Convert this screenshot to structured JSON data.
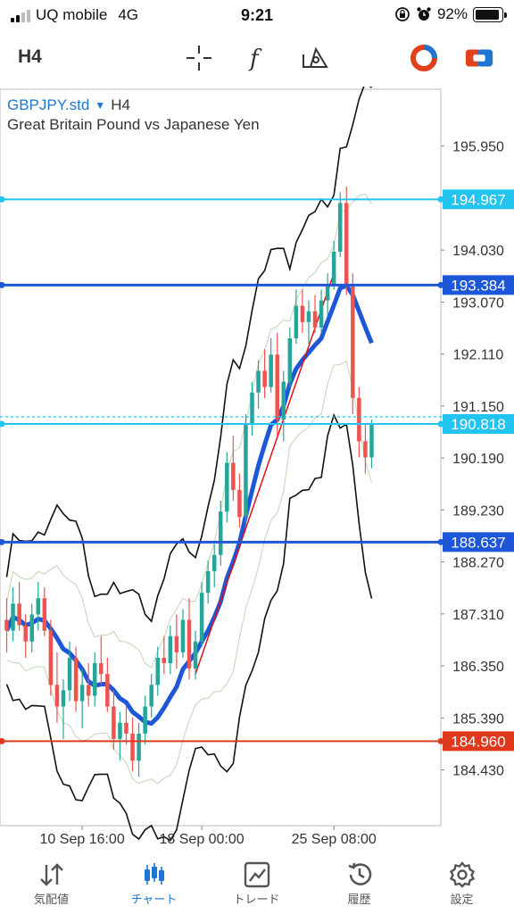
{
  "status": {
    "carrier": "UQ mobile",
    "network": "4G",
    "time": "9:21",
    "battery": "92%",
    "battery_level": 0.92
  },
  "toolbar": {
    "timeframe": "H4",
    "icons": [
      "crosshair-icon",
      "function-icon",
      "objects-icon",
      "trade-circle-icon",
      "one-click-trading-icon"
    ]
  },
  "chart": {
    "symbol": "GBPJPY.std",
    "timeframe": "H4",
    "description": "Great Britain Pound vs Japanese Yen"
  },
  "tabs": [
    {
      "label": "気配値",
      "icon": "quotes-icon",
      "active": false
    },
    {
      "label": "チャート",
      "icon": "chart-icon",
      "active": true
    },
    {
      "label": "トレード",
      "icon": "trade-icon",
      "active": false
    },
    {
      "label": "履歴",
      "icon": "history-icon",
      "active": false
    },
    {
      "label": "設定",
      "icon": "settings-icon",
      "active": false
    }
  ],
  "chart_data": {
    "type": "candlestick",
    "y_ticks": [
      "195.950",
      "194.030",
      "193.070",
      "192.110",
      "191.150",
      "190.190",
      "189.230",
      "188.270",
      "187.310",
      "186.350",
      "185.390",
      "184.430"
    ],
    "y_tick_values": [
      195.95,
      194.03,
      193.07,
      192.11,
      191.15,
      190.19,
      189.23,
      188.27,
      187.31,
      186.35,
      185.39,
      184.43
    ],
    "ylim": [
      183.4,
      197.0
    ],
    "x_ticks": [
      "10 Sep 16:00",
      "18 Sep 00:00",
      "25 Sep 08:00"
    ],
    "horizontal_lines": [
      {
        "label": "194.967",
        "value": 194.967,
        "color": "#23c4f0",
        "style": "solid",
        "tag_bg": "#23c4f0",
        "tag_fg": "#ffffff"
      },
      {
        "label": "193.384",
        "value": 193.384,
        "color": "#1e56d8",
        "style": "solid",
        "tag_bg": "#1e56d8",
        "tag_fg": "#ffffff"
      },
      {
        "label": "190.818",
        "value": 190.818,
        "color": "#23c4f0",
        "style": "solid",
        "tag_bg": "#23c4f0",
        "tag_fg": "#ffffff"
      },
      {
        "label": "188.637",
        "value": 188.637,
        "color": "#1e56d8",
        "style": "solid",
        "tag_bg": "#1e56d8",
        "tag_fg": "#ffffff"
      },
      {
        "label": "184.960",
        "value": 184.96,
        "color": "#e03a1e",
        "style": "solid",
        "tag_bg": "#e03a1e",
        "tag_fg": "#ffffff"
      }
    ],
    "price_line": {
      "value": 190.95,
      "color": "#23c4f0",
      "style": "dotted"
    },
    "colors": {
      "bull": "#26a69a",
      "bear": "#ef5350",
      "ma": "#1e56d8",
      "band": "#111111",
      "trend": "#e01010",
      "inner_band": "#c9dcc0"
    },
    "candles": [
      [
        187.2,
        187.6,
        186.6,
        187.0
      ],
      [
        187.0,
        187.8,
        186.8,
        187.5
      ],
      [
        187.5,
        187.9,
        187.0,
        187.1
      ],
      [
        187.1,
        187.3,
        186.5,
        186.8
      ],
      [
        186.8,
        187.5,
        186.6,
        187.3
      ],
      [
        187.3,
        187.9,
        187.0,
        187.6
      ],
      [
        187.6,
        187.8,
        186.9,
        187.0
      ],
      [
        187.0,
        187.2,
        185.8,
        186.0
      ],
      [
        186.0,
        186.6,
        185.3,
        185.6
      ],
      [
        185.6,
        186.1,
        185.0,
        185.9
      ],
      [
        185.9,
        186.8,
        185.7,
        186.5
      ],
      [
        186.5,
        186.7,
        185.5,
        185.7
      ],
      [
        185.7,
        186.3,
        185.2,
        186.0
      ],
      [
        186.0,
        186.4,
        185.6,
        185.8
      ],
      [
        185.8,
        186.6,
        185.6,
        186.4
      ],
      [
        186.4,
        186.9,
        186.0,
        186.2
      ],
      [
        186.2,
        186.5,
        185.5,
        185.6
      ],
      [
        185.6,
        185.9,
        184.8,
        185.0
      ],
      [
        185.0,
        185.5,
        184.6,
        185.3
      ],
      [
        185.3,
        185.6,
        184.9,
        185.1
      ],
      [
        185.1,
        185.4,
        184.4,
        184.6
      ],
      [
        184.6,
        185.3,
        184.3,
        185.1
      ],
      [
        185.1,
        185.8,
        184.9,
        185.6
      ],
      [
        185.6,
        186.2,
        185.4,
        186.0
      ],
      [
        186.0,
        186.7,
        185.8,
        186.5
      ],
      [
        186.5,
        186.9,
        186.2,
        186.4
      ],
      [
        186.4,
        187.1,
        186.2,
        186.9
      ],
      [
        186.9,
        187.3,
        186.3,
        186.6
      ],
      [
        186.6,
        187.4,
        186.5,
        187.2
      ],
      [
        187.2,
        187.6,
        186.1,
        186.3
      ],
      [
        186.3,
        187.0,
        186.1,
        186.8
      ],
      [
        186.8,
        187.9,
        186.7,
        187.7
      ],
      [
        187.7,
        188.3,
        187.5,
        188.1
      ],
      [
        188.1,
        188.6,
        187.8,
        188.4
      ],
      [
        188.4,
        189.4,
        188.2,
        189.2
      ],
      [
        189.2,
        190.3,
        189.0,
        190.1
      ],
      [
        190.1,
        190.6,
        189.4,
        189.6
      ],
      [
        189.6,
        189.9,
        188.9,
        189.1
      ],
      [
        189.1,
        191.0,
        189.0,
        190.8
      ],
      [
        190.8,
        191.6,
        190.6,
        191.4
      ],
      [
        191.4,
        192.0,
        191.1,
        191.8
      ],
      [
        191.8,
        192.2,
        191.3,
        191.5
      ],
      [
        191.5,
        192.4,
        191.4,
        192.1
      ],
      [
        192.1,
        192.5,
        190.6,
        190.9
      ],
      [
        190.9,
        191.8,
        190.5,
        191.6
      ],
      [
        191.6,
        192.6,
        191.5,
        192.4
      ],
      [
        192.4,
        193.3,
        192.3,
        193.0
      ],
      [
        193.0,
        193.3,
        192.5,
        192.7
      ],
      [
        192.7,
        193.1,
        192.3,
        192.9
      ],
      [
        192.9,
        193.2,
        192.5,
        192.6
      ],
      [
        192.6,
        193.3,
        192.5,
        193.1
      ],
      [
        193.1,
        193.6,
        192.8,
        193.4
      ],
      [
        193.4,
        194.2,
        193.3,
        194.0
      ],
      [
        194.0,
        195.1,
        193.9,
        194.9
      ],
      [
        194.9,
        195.2,
        193.2,
        193.4
      ],
      [
        193.4,
        193.6,
        191.0,
        191.3
      ],
      [
        191.3,
        191.5,
        190.2,
        190.5
      ],
      [
        190.5,
        190.8,
        189.9,
        190.2
      ],
      [
        190.2,
        190.9,
        190.0,
        190.8
      ]
    ]
  }
}
